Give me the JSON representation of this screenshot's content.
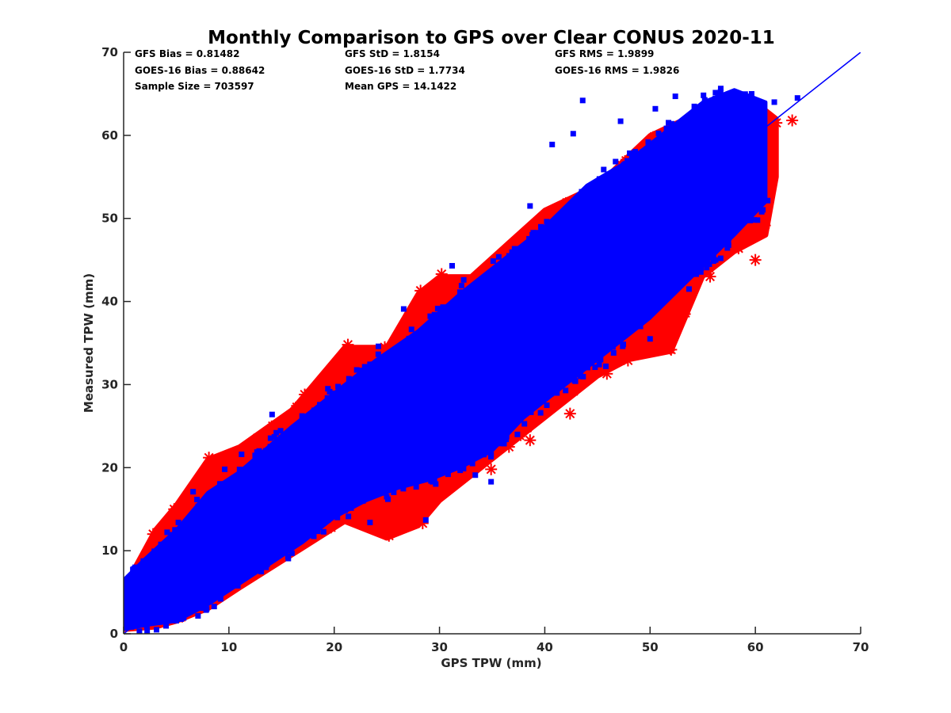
{
  "chart_data": {
    "type": "scatter",
    "title": "Monthly Comparison to GPS over Clear CONUS 2020-11",
    "xlabel": "GPS TPW (mm)",
    "ylabel": "Measured TPW (mm)",
    "xlim": [
      0,
      70
    ],
    "ylim": [
      0,
      70
    ],
    "xticks": [
      0,
      10,
      20,
      30,
      40,
      50,
      60,
      70
    ],
    "yticks": [
      0,
      10,
      20,
      30,
      40,
      50,
      60,
      70
    ],
    "grid": false,
    "colors": {
      "gfs": "#ff0000",
      "goes": "#0000ff",
      "reference_line": "#0000ff",
      "axis": "#262626"
    },
    "stats": [
      [
        "GFS Bias = 0.81482",
        "GFS StD = 1.8154",
        "GFS RMS = 1.9899"
      ],
      [
        "GOES-16 Bias = 0.88642",
        "GOES-16 StD = 1.7734",
        "GOES-16 RMS = 1.9826"
      ],
      [
        "Sample Size = 703597",
        "Mean GPS = 14.1422"
      ]
    ],
    "reference_line": {
      "name": "1:1 line",
      "x": [
        0,
        70
      ],
      "y": [
        0,
        70
      ]
    },
    "series": [
      {
        "name": "GFS",
        "marker": "asterisk",
        "color": "#ff0000",
        "upper_envelope": [
          [
            0,
            5.5
          ],
          [
            3,
            12.5
          ],
          [
            5,
            15.5
          ],
          [
            8,
            21
          ],
          [
            11,
            22.5
          ],
          [
            16,
            27
          ],
          [
            21,
            34.5
          ],
          [
            25,
            34.5
          ],
          [
            28,
            41
          ],
          [
            30,
            43
          ],
          [
            33,
            43
          ],
          [
            40,
            51
          ],
          [
            45,
            54
          ],
          [
            50,
            60
          ],
          [
            55,
            63
          ],
          [
            60,
            64
          ],
          [
            62,
            62
          ]
        ],
        "lower_envelope": [
          [
            0,
            0.5
          ],
          [
            3,
            0.8
          ],
          [
            5,
            1.5
          ],
          [
            8,
            3
          ],
          [
            11,
            5.5
          ],
          [
            16,
            9.5
          ],
          [
            21,
            13.5
          ],
          [
            25,
            11.5
          ],
          [
            28,
            13
          ],
          [
            30,
            16
          ],
          [
            33,
            19
          ],
          [
            37,
            23
          ],
          [
            40,
            26
          ],
          [
            45,
            31
          ],
          [
            48,
            33
          ],
          [
            52,
            34
          ],
          [
            55,
            43
          ],
          [
            58,
            46
          ],
          [
            61,
            48
          ],
          [
            62,
            55
          ]
        ],
        "outliers": [
          [
            8.1,
            21.2
          ],
          [
            8.2,
            18.2
          ],
          [
            4.8,
            15
          ],
          [
            2.8,
            12
          ],
          [
            11.7,
            22.3
          ],
          [
            15.6,
            26
          ],
          [
            17.2,
            28.8
          ],
          [
            21.3,
            34.8
          ],
          [
            24.8,
            34.5
          ],
          [
            28.2,
            41.3
          ],
          [
            30.2,
            43.3
          ],
          [
            30.5,
            40.8
          ],
          [
            32.5,
            41
          ],
          [
            26.7,
            16.6
          ],
          [
            28.4,
            13.3
          ],
          [
            25.2,
            11.8
          ],
          [
            34.9,
            19.8
          ],
          [
            38.6,
            23.3
          ],
          [
            42.4,
            26.5
          ],
          [
            45.9,
            31.3
          ],
          [
            47.9,
            32.9
          ],
          [
            52,
            34.2
          ],
          [
            51.3,
            35
          ],
          [
            54.5,
            43.5
          ],
          [
            55.7,
            43
          ],
          [
            58.4,
            46.4
          ],
          [
            60,
            45
          ],
          [
            63.5,
            61.8
          ],
          [
            62,
            61.5
          ],
          [
            60.6,
            58.5
          ],
          [
            59,
            56
          ],
          [
            61,
            52.5
          ],
          [
            58,
            48
          ],
          [
            49,
            38.5
          ],
          [
            42,
            36.5
          ],
          [
            36.6,
            22.5
          ],
          [
            25.5,
            17
          ],
          [
            19.7,
            12.8
          ],
          [
            14.2,
            10
          ]
        ]
      },
      {
        "name": "GOES-16",
        "marker": "square",
        "color": "#0000ff",
        "upper_envelope": [
          [
            0,
            6.5
          ],
          [
            2,
            9
          ],
          [
            5,
            12.5
          ],
          [
            8,
            17
          ],
          [
            11,
            19.5
          ],
          [
            16,
            25
          ],
          [
            20,
            29
          ],
          [
            24,
            33
          ],
          [
            28,
            36.5
          ],
          [
            32,
            41
          ],
          [
            36,
            45
          ],
          [
            40,
            49
          ],
          [
            44,
            54
          ],
          [
            48,
            57
          ],
          [
            52,
            61
          ],
          [
            55,
            64
          ],
          [
            58,
            65.5
          ],
          [
            61,
            64
          ]
        ],
        "lower_envelope": [
          [
            0,
            0.5
          ],
          [
            2,
            1
          ],
          [
            5,
            1.5
          ],
          [
            8,
            3.5
          ],
          [
            11,
            6
          ],
          [
            14,
            8.5
          ],
          [
            17,
            11
          ],
          [
            20,
            14
          ],
          [
            23,
            16
          ],
          [
            26,
            17.5
          ],
          [
            29,
            18.5
          ],
          [
            32,
            20
          ],
          [
            35,
            22
          ],
          [
            38,
            26
          ],
          [
            42,
            30
          ],
          [
            46,
            34
          ],
          [
            50,
            38
          ],
          [
            54,
            43
          ],
          [
            58,
            48
          ],
          [
            61,
            52
          ]
        ],
        "outliers": [
          [
            43.6,
            64.2
          ],
          [
            40.7,
            58.9
          ],
          [
            42.7,
            60.2
          ],
          [
            47.2,
            61.7
          ],
          [
            50.5,
            63.2
          ],
          [
            52.4,
            64.7
          ],
          [
            48.6,
            55.6
          ],
          [
            38.6,
            51.5
          ],
          [
            39.7,
            48.7
          ],
          [
            36.3,
            44.2
          ],
          [
            32.3,
            42.6
          ],
          [
            31.2,
            44.3
          ],
          [
            26.6,
            39.1
          ],
          [
            24.2,
            34.6
          ],
          [
            21.4,
            30.7
          ],
          [
            19.4,
            29.5
          ],
          [
            18.1,
            26.9
          ],
          [
            14.5,
            24.2
          ],
          [
            14.1,
            26.4
          ],
          [
            11.2,
            21.6
          ],
          [
            9.6,
            19.8
          ],
          [
            6.6,
            17.1
          ],
          [
            5.2,
            13.4
          ],
          [
            3.6,
            10.4
          ],
          [
            1.1,
            8
          ],
          [
            34.9,
            18.3
          ],
          [
            37.4,
            24
          ],
          [
            39.6,
            26.6
          ],
          [
            43.4,
            31
          ],
          [
            45.8,
            32.2
          ],
          [
            50,
            35.5
          ],
          [
            53.7,
            41.5
          ],
          [
            56.7,
            45.2
          ],
          [
            60.2,
            49.8
          ],
          [
            60.6,
            50.8
          ],
          [
            64,
            64.5
          ],
          [
            61.8,
            64
          ],
          [
            45.3,
            33
          ],
          [
            41.1,
            30.7
          ],
          [
            33.4,
            19.1
          ],
          [
            29.3,
            18.6
          ],
          [
            28.7,
            13.7
          ],
          [
            25.1,
            16.2
          ],
          [
            23.4,
            13.4
          ],
          [
            20.3,
            14
          ]
        ]
      }
    ]
  }
}
